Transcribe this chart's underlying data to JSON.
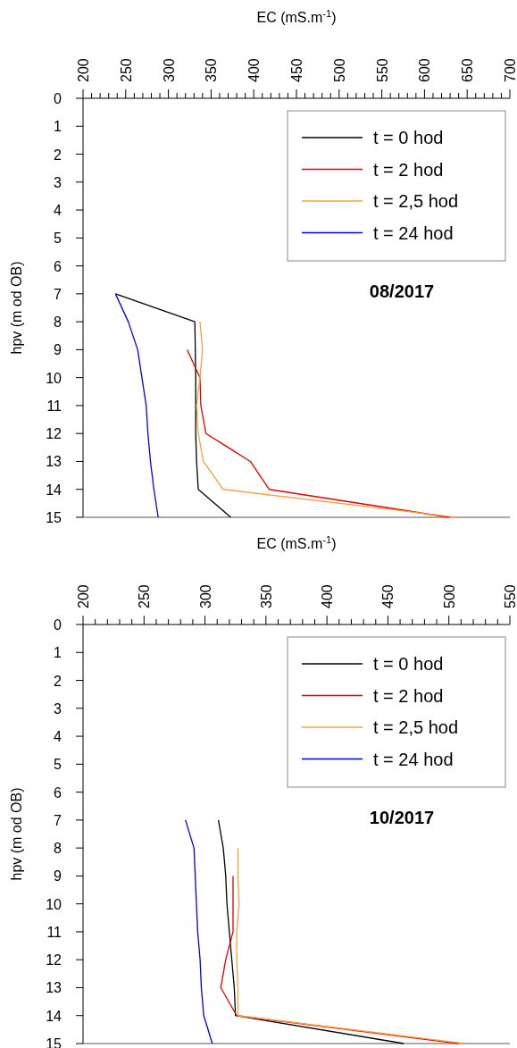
{
  "chart_data": [
    {
      "type": "line",
      "xlabel": "EC (mS.m$^{-1}$)",
      "ylabel": "hpv (m od OB)",
      "annotations": [
        "08/2017"
      ],
      "legend": "top right",
      "xlim": [
        200,
        700
      ],
      "xticks": [
        200,
        {
          "value": 210,
          "label": null
        },
        {
          "value": 220,
          "label": null
        },
        {
          "value": 230,
          "label": null
        },
        {
          "value": 240,
          "label": null
        },
        250,
        {
          "value": 260,
          "label": null
        },
        {
          "value": 270,
          "label": null
        },
        {
          "value": 280,
          "label": null
        },
        {
          "value": 290,
          "label": null
        },
        300,
        {
          "value": 310,
          "label": null
        },
        {
          "value": 320,
          "label": null
        },
        {
          "value": 330,
          "label": null
        },
        {
          "value": 340,
          "label": null
        },
        350,
        {
          "value": 360,
          "label": null
        },
        {
          "value": 370,
          "label": null
        },
        {
          "value": 380,
          "label": null
        },
        {
          "value": 390,
          "label": null
        },
        400,
        {
          "value": 410,
          "label": null
        },
        {
          "value": 420,
          "label": null
        },
        {
          "value": 430,
          "label": null
        },
        {
          "value": 440,
          "label": null
        },
        450,
        {
          "value": 460,
          "label": null
        },
        {
          "value": 470,
          "label": null
        },
        {
          "value": 480,
          "label": null
        },
        {
          "value": 490,
          "label": null
        },
        500,
        {
          "value": 510,
          "label": null
        },
        {
          "value": 520,
          "label": null
        },
        {
          "value": 530,
          "label": null
        },
        {
          "value": 540,
          "label": null
        },
        550,
        {
          "value": 560,
          "label": null
        },
        {
          "value": 570,
          "label": null
        },
        {
          "value": 580,
          "label": null
        },
        {
          "value": 590,
          "label": null
        },
        600,
        {
          "value": 610,
          "label": null
        },
        {
          "value": 620,
          "label": null
        },
        {
          "value": 630,
          "label": null
        },
        {
          "value": 640,
          "label": null
        },
        650,
        {
          "value": 660,
          "label": null
        },
        {
          "value": 670,
          "label": null
        },
        {
          "value": 680,
          "label": null
        },
        {
          "value": 690,
          "label": null
        },
        700
      ],
      "ylim": [
        15,
        0
      ],
      "yticks": [
        0,
        1,
        2,
        3,
        4,
        5,
        6,
        7,
        8,
        9,
        10,
        11,
        12,
        13,
        14,
        15
      ],
      "series": [
        {
          "name": "t = 0 hod",
          "color": "#000000",
          "x": [
            238,
            331,
            332,
            332,
            332,
            333,
            335,
            373
          ],
          "values": [
            7,
            8,
            10,
            11,
            12,
            13,
            14,
            15
          ]
        },
        {
          "name": "t = 2 hod",
          "color": "#e00000",
          "x": [
            322,
            337,
            338,
            344,
            396,
            418,
            629
          ],
          "values": [
            9,
            10,
            11,
            12,
            13,
            14,
            15
          ]
        },
        {
          "name": "t = 2,5 hod",
          "color": "#f7a040",
          "x": [
            337,
            340,
            337,
            333,
            335,
            341,
            364,
            637
          ],
          "values": [
            8,
            9,
            10,
            11,
            12,
            13,
            14,
            15
          ]
        },
        {
          "name": "t = 24 hod",
          "color": "#0000e0",
          "x": [
            238,
            253,
            264,
            274,
            276,
            279,
            283,
            288
          ],
          "values": [
            7,
            8,
            9,
            11,
            12,
            13,
            14,
            15
          ]
        }
      ]
    },
    {
      "type": "line",
      "xlabel": "EC (mS.m$^{-1}$)",
      "ylabel": "hpv (m od OB)",
      "annotations": [
        "10/2017"
      ],
      "legend": "top right",
      "xlim": [
        200,
        550
      ],
      "xticks": [
        200,
        {
          "value": 210,
          "label": null
        },
        {
          "value": 220,
          "label": null
        },
        {
          "value": 230,
          "label": null
        },
        {
          "value": 240,
          "label": null
        },
        250,
        {
          "value": 260,
          "label": null
        },
        {
          "value": 270,
          "label": null
        },
        {
          "value": 280,
          "label": null
        },
        {
          "value": 290,
          "label": null
        },
        300,
        {
          "value": 310,
          "label": null
        },
        {
          "value": 320,
          "label": null
        },
        {
          "value": 330,
          "label": null
        },
        {
          "value": 340,
          "label": null
        },
        350,
        {
          "value": 360,
          "label": null
        },
        {
          "value": 370,
          "label": null
        },
        {
          "value": 380,
          "label": null
        },
        {
          "value": 390,
          "label": null
        },
        400,
        {
          "value": 410,
          "label": null
        },
        {
          "value": 420,
          "label": null
        },
        {
          "value": 430,
          "label": null
        },
        {
          "value": 440,
          "label": null
        },
        450,
        {
          "value": 460,
          "label": null
        },
        {
          "value": 470,
          "label": null
        },
        {
          "value": 480,
          "label": null
        },
        {
          "value": 490,
          "label": null
        },
        500,
        {
          "value": 510,
          "label": null
        },
        {
          "value": 520,
          "label": null
        },
        {
          "value": 530,
          "label": null
        },
        {
          "value": 540,
          "label": null
        },
        550
      ],
      "ylim": [
        15,
        0
      ],
      "yticks": [
        0,
        1,
        2,
        3,
        4,
        5,
        6,
        7,
        8,
        9,
        10,
        11,
        12,
        13,
        14,
        15
      ],
      "series": [
        {
          "name": "t = 0 hod",
          "color": "#000000",
          "x": [
            311,
            315,
            317,
            318,
            320,
            322,
            324,
            325,
            463
          ],
          "values": [
            7,
            8,
            9,
            10,
            11,
            12,
            13,
            14,
            15
          ]
        },
        {
          "name": "t = 2 hod",
          "color": "#e00000",
          "x": [
            323,
            323,
            323,
            317,
            313,
            326,
            508
          ],
          "values": [
            9,
            10,
            11,
            12,
            13,
            14,
            15
          ]
        },
        {
          "name": "t = 2,5 hod",
          "color": "#f7a040",
          "x": [
            327,
            327,
            328,
            326,
            326,
            327,
            327,
            513
          ],
          "values": [
            8,
            9,
            10,
            11,
            12,
            13,
            14,
            15
          ]
        },
        {
          "name": "t = 24 hod",
          "color": "#0000e0",
          "x": [
            284,
            291,
            292,
            293,
            294,
            296,
            297,
            299,
            306
          ],
          "values": [
            7,
            8,
            9,
            10,
            11,
            12,
            13,
            14,
            15
          ]
        }
      ]
    }
  ]
}
